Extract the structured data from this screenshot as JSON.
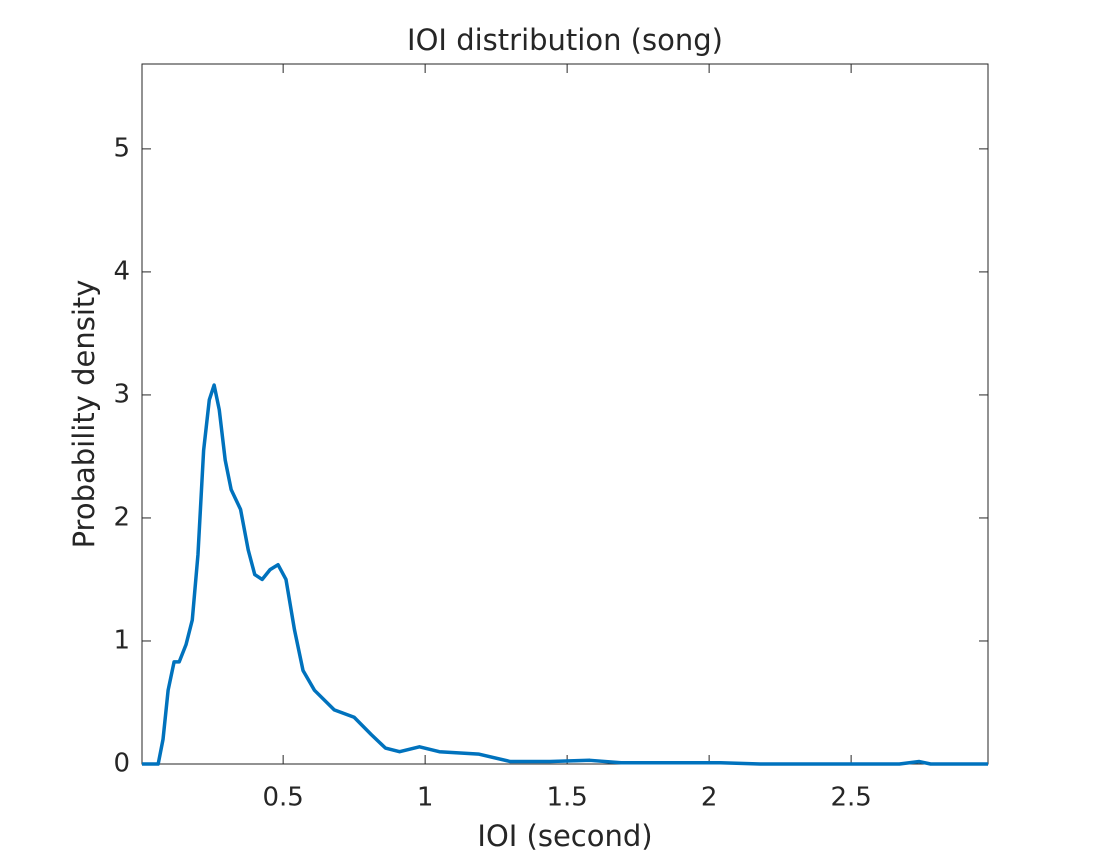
{
  "chart_data": {
    "type": "line",
    "title": "IOI distribution (song)",
    "x_label": "IOI (second)",
    "y_label": "Probability density",
    "series": [
      {
        "name": "IOI density",
        "color": "#0072bd",
        "x": [
          0.003,
          0.06,
          0.077,
          0.095,
          0.116,
          0.134,
          0.158,
          0.18,
          0.2,
          0.22,
          0.24,
          0.257,
          0.275,
          0.296,
          0.317,
          0.35,
          0.377,
          0.4,
          0.426,
          0.454,
          0.482,
          0.51,
          0.54,
          0.57,
          0.61,
          0.68,
          0.75,
          0.81,
          0.86,
          0.91,
          0.98,
          1.05,
          1.19,
          1.3,
          1.44,
          1.58,
          1.69,
          1.9,
          2.04,
          2.18,
          2.67,
          2.74,
          2.78,
          2.982
        ],
        "values": [
          0,
          0,
          0.2,
          0.6,
          0.83,
          0.83,
          0.97,
          1.17,
          1.7,
          2.55,
          2.96,
          3.08,
          2.88,
          2.47,
          2.23,
          2.07,
          1.74,
          1.54,
          1.5,
          1.58,
          1.62,
          1.5,
          1.09,
          0.76,
          0.6,
          0.44,
          0.38,
          0.24,
          0.13,
          0.1,
          0.14,
          0.1,
          0.08,
          0.02,
          0.02,
          0.03,
          0.01,
          0.01,
          0.01,
          0,
          0,
          0.02,
          0,
          0
        ]
      }
    ],
    "xlim": [
      0.003,
      2.982
    ],
    "xticks": [
      0.5,
      1,
      1.5,
      2,
      2.5
    ],
    "ylim": [
      0,
      5.69
    ],
    "yticks": [
      0,
      1,
      2,
      3,
      4,
      5
    ],
    "grid": false
  }
}
